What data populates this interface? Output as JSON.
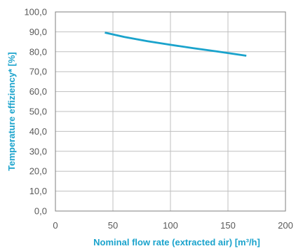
{
  "chart_data": {
    "type": "line",
    "xlabel": "Nominal flow rate (extracted air) [m³/h]",
    "ylabel": "Temperature effiziency* [%]",
    "xlim": [
      0,
      200
    ],
    "ylim": [
      0,
      100
    ],
    "x_ticks": [
      "0",
      "50",
      "100",
      "150",
      "200"
    ],
    "y_ticks": [
      "0,0",
      "10,0",
      "20,0",
      "30,0",
      "40,0",
      "50,0",
      "60,0",
      "70,0",
      "80,0",
      "90,0",
      "100,0"
    ],
    "grid": true,
    "series": [
      {
        "color": "#1aa3cc",
        "x": [
          43,
          60,
          80,
          100,
          120,
          140,
          166
        ],
        "y": [
          89.6,
          87.4,
          85.3,
          83.5,
          81.8,
          80.2,
          78.0
        ]
      }
    ]
  },
  "colors": {
    "line": "#1aa3cc",
    "axis_title": "#1aa3cc",
    "grid": "#bfbfbf",
    "frame": "#7f7f7f",
    "tick_text": "#595959"
  }
}
